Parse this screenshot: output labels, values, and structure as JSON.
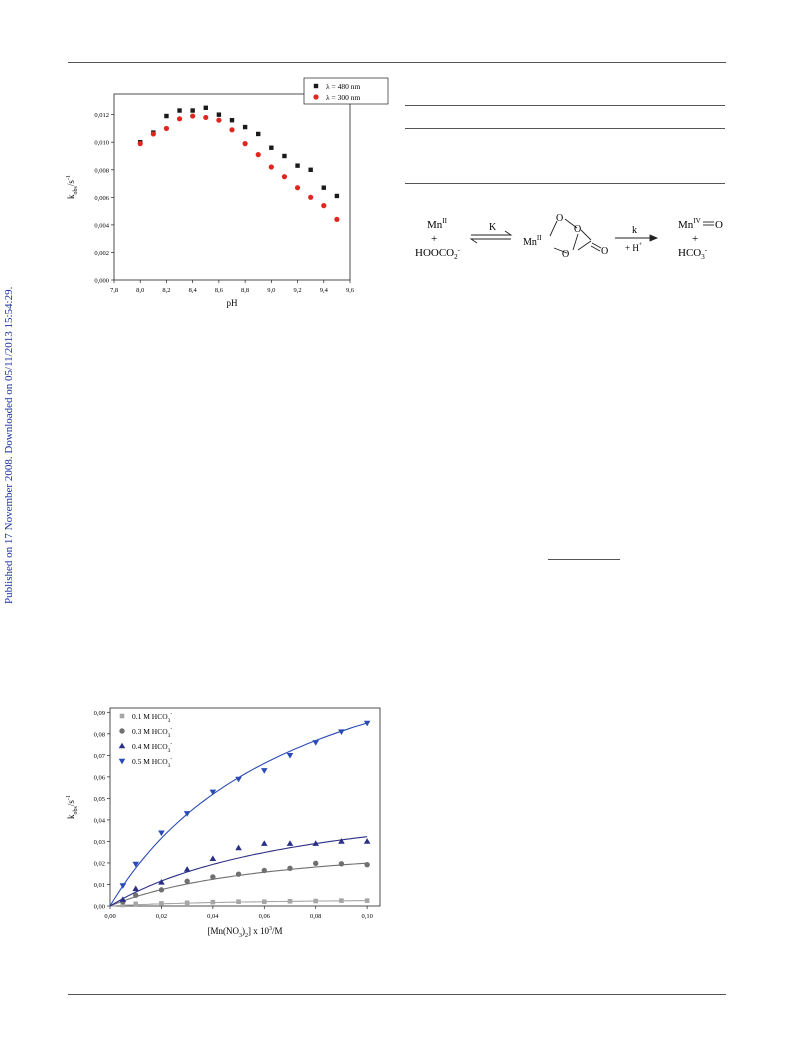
{
  "side_note": "Published on 17 November 2008. Downloaded on 05/11/2013 15:54:29.",
  "scheme": {
    "reactant_metal": "Mn",
    "reactant_metal_sup": "II",
    "plus": "+",
    "reactant_ligand": "HOOCO",
    "reactant_ligand_sub": "2",
    "reactant_ligand_sup": "-",
    "k_eq": "K",
    "intermediate_metal": "Mn",
    "intermediate_metal_sup": "II",
    "ring_o1": "O",
    "ring_o2": "O",
    "ring_o3": "O",
    "ring_o4": "O",
    "k_rate": "k",
    "k_rate_cond": "+ H",
    "k_rate_cond_sup": "+",
    "product_metal": "Mn",
    "product_metal_sup": "IV",
    "product_oxo": "O",
    "product_plus": "+",
    "product_byproduct": "HCO",
    "product_byproduct_sub": "3",
    "product_byproduct_sup": "-"
  },
  "chart_data": [
    {
      "type": "scatter",
      "xlabel": "pH",
      "ylabel_main": "k",
      "ylabel_sub": "obs",
      "ylabel_unit": "/s",
      "ylabel_sup": "-1",
      "xlim": [
        7.8,
        9.6
      ],
      "ylim": [
        0.0,
        0.0135
      ],
      "xticks": [
        "7,8",
        "8,0",
        "8,2",
        "8,4",
        "8,6",
        "8,8",
        "9,0",
        "9,2",
        "9,4",
        "9,6"
      ],
      "xtick_values": [
        7.8,
        8.0,
        8.2,
        8.4,
        8.6,
        8.8,
        9.0,
        9.2,
        9.4,
        9.6
      ],
      "yticks": [
        "0,000",
        "0,002",
        "0,004",
        "0,006",
        "0,008",
        "0,010",
        "0,012"
      ],
      "ytick_values": [
        0.0,
        0.002,
        0.004,
        0.006,
        0.008,
        0.01,
        0.012
      ],
      "legend_position": "top-right",
      "series": [
        {
          "name": "λ = 480 nm",
          "marker": "square",
          "color": "#1a1a1a",
          "x": [
            8.0,
            8.1,
            8.2,
            8.3,
            8.4,
            8.5,
            8.6,
            8.7,
            8.8,
            8.9,
            9.0,
            9.1,
            9.2,
            9.3,
            9.4,
            9.5
          ],
          "y": [
            0.01,
            0.0107,
            0.0119,
            0.0123,
            0.0123,
            0.0125,
            0.012,
            0.0116,
            0.0111,
            0.0106,
            0.0096,
            0.009,
            0.0083,
            0.008,
            0.0067,
            0.0061
          ]
        },
        {
          "name": "λ = 300 nm",
          "marker": "circle",
          "color": "#e0261f",
          "x": [
            8.0,
            8.1,
            8.2,
            8.3,
            8.4,
            8.5,
            8.6,
            8.7,
            8.8,
            8.9,
            9.0,
            9.1,
            9.2,
            9.3,
            9.4,
            9.5
          ],
          "y": [
            0.0099,
            0.0106,
            0.011,
            0.0117,
            0.0119,
            0.0118,
            0.0116,
            0.0109,
            0.0099,
            0.0091,
            0.0082,
            0.0075,
            0.0067,
            0.006,
            0.0054,
            0.0044
          ]
        }
      ]
    },
    {
      "type": "scatter",
      "xlabel_pre": "[Mn(NO",
      "xlabel_sub1": "3",
      "xlabel_mid": ")",
      "xlabel_sub2": "2",
      "xlabel_post": "] x 10",
      "xlabel_sup": "3",
      "xlabel_unit": "/M",
      "ylabel_main": "k",
      "ylabel_sub": "obs",
      "ylabel_unit": "/s",
      "ylabel_sup": "-1",
      "xlim": [
        0.0,
        0.105
      ],
      "ylim": [
        0.0,
        0.092
      ],
      "xticks": [
        "0,00",
        "0,02",
        "0,04",
        "0,06",
        "0,08",
        "0,10"
      ],
      "xtick_values": [
        0.0,
        0.02,
        0.04,
        0.06,
        0.08,
        0.1
      ],
      "yticks": [
        "0,00",
        "0,01",
        "0,02",
        "0,03",
        "0,04",
        "0,05",
        "0,06",
        "0,07",
        "0,08",
        "0,09"
      ],
      "ytick_values": [
        0.0,
        0.01,
        0.02,
        0.03,
        0.04,
        0.05,
        0.06,
        0.07,
        0.08,
        0.09
      ],
      "legend_position": "top-left",
      "fit_curves": true,
      "series": [
        {
          "name": "0.1 M HCO",
          "name_sub": "3",
          "name_sup": "-",
          "marker": "square",
          "color": "#a6a6a6",
          "x": [
            0.005,
            0.01,
            0.02,
            0.03,
            0.04,
            0.05,
            0.06,
            0.07,
            0.08,
            0.09,
            0.1
          ],
          "y": [
            0.0005,
            0.001,
            0.0012,
            0.0015,
            0.0018,
            0.002,
            0.002,
            0.0022,
            0.0023,
            0.0025,
            0.0025
          ],
          "fit": {
            "a": 0.004,
            "b": 0.06
          }
        },
        {
          "name": "0.3 M HCO",
          "name_sub": "3",
          "name_sup": "-",
          "marker": "circle",
          "color": "#707070",
          "x": [
            0.005,
            0.01,
            0.02,
            0.03,
            0.04,
            0.05,
            0.06,
            0.07,
            0.08,
            0.09,
            0.1
          ],
          "y": [
            0.002,
            0.005,
            0.0075,
            0.0115,
            0.0135,
            0.0148,
            0.0165,
            0.0175,
            0.0198,
            0.0196,
            0.0192
          ],
          "fit": {
            "a": 0.0335,
            "b": 0.068
          }
        },
        {
          "name": "0.4 M HCO",
          "name_sub": "3",
          "name_sup": "-",
          "marker": "triangle-up",
          "color": "#2b2f86",
          "x": [
            0.005,
            0.01,
            0.02,
            0.03,
            0.04,
            0.05,
            0.06,
            0.07,
            0.08,
            0.09,
            0.1
          ],
          "y": [
            0.003,
            0.008,
            0.011,
            0.017,
            0.022,
            0.027,
            0.029,
            0.029,
            0.029,
            0.03,
            0.03
          ],
          "fit": {
            "a": 0.058,
            "b": 0.08
          }
        },
        {
          "name": "0.5 M HCO",
          "name_sub": "3",
          "name_sup": "-",
          "marker": "triangle-down",
          "color": "#2a4bb5",
          "x": [
            0.005,
            0.01,
            0.02,
            0.03,
            0.04,
            0.05,
            0.06,
            0.07,
            0.08,
            0.09,
            0.1
          ],
          "y": [
            0.0095,
            0.0195,
            0.034,
            0.043,
            0.053,
            0.059,
            0.063,
            0.07,
            0.076,
            0.081,
            0.085
          ],
          "fit": {
            "a": 0.148,
            "b": 0.074
          }
        }
      ]
    }
  ]
}
